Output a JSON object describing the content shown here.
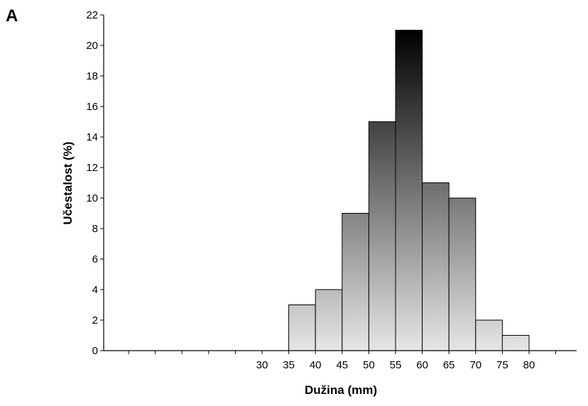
{
  "panel_label": "A",
  "chart_data": {
    "type": "bar",
    "title": "",
    "xlabel": "Dužina (mm)",
    "ylabel": "Učestalost (%)",
    "ylim": [
      0,
      22
    ],
    "y_ticks": [
      "0",
      "2",
      "4",
      "6",
      "8",
      "10",
      "12",
      "14",
      "16",
      "18",
      "20",
      "22"
    ],
    "x_tick_labels": [
      "30",
      "35",
      "40",
      "45",
      "50",
      "55",
      "60",
      "65",
      "70",
      "75",
      "80"
    ],
    "categories": [
      "35-40",
      "40-45",
      "45-50",
      "50-55",
      "55-60",
      "60-65",
      "65-70",
      "70-75",
      "75-80"
    ],
    "bin_edges": [
      35,
      40,
      45,
      50,
      55,
      60,
      65,
      70,
      75,
      80
    ],
    "values": [
      3,
      4,
      9,
      15,
      21,
      11,
      10,
      2,
      1
    ],
    "bar_fill": "gradient (light gray at bottom to black at top)",
    "grid": false,
    "legend": "none"
  }
}
